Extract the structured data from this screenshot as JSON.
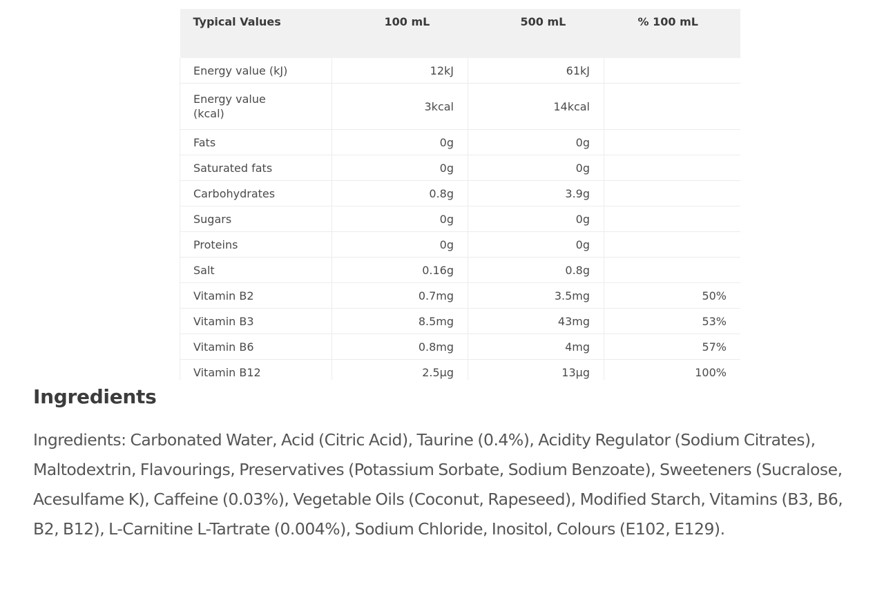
{
  "nutrition_table": {
    "headers": [
      "Typical Values",
      "100 mL",
      "500 mL",
      "% 100 mL"
    ],
    "rows": [
      {
        "name": "Energy value (kJ)",
        "per_100ml": "12kJ",
        "per_500ml": "61kJ",
        "percent": ""
      },
      {
        "name": "Energy value (kcal)",
        "per_100ml": "3kcal",
        "per_500ml": "14kcal",
        "percent": ""
      },
      {
        "name": "Fats",
        "per_100ml": "0g",
        "per_500ml": "0g",
        "percent": ""
      },
      {
        "name": "Saturated fats",
        "per_100ml": "0g",
        "per_500ml": "0g",
        "percent": ""
      },
      {
        "name": "Carbohydrates",
        "per_100ml": "0.8g",
        "per_500ml": "3.9g",
        "percent": ""
      },
      {
        "name": "Sugars",
        "per_100ml": "0g",
        "per_500ml": "0g",
        "percent": ""
      },
      {
        "name": "Proteins",
        "per_100ml": "0g",
        "per_500ml": "0g",
        "percent": ""
      },
      {
        "name": "Salt",
        "per_100ml": "0.16g",
        "per_500ml": "0.8g",
        "percent": ""
      },
      {
        "name": "Vitamin B2",
        "per_100ml": "0.7mg",
        "per_500ml": "3.5mg",
        "percent": "50%"
      },
      {
        "name": "Vitamin B3",
        "per_100ml": "8.5mg",
        "per_500ml": "43mg",
        "percent": "53%"
      },
      {
        "name": "Vitamin B6",
        "per_100ml": "0.8mg",
        "per_500ml": "4mg",
        "percent": "57%"
      },
      {
        "name": "Vitamin B12",
        "per_100ml": "2.5µg",
        "per_500ml": "13µg",
        "percent": "100%"
      }
    ]
  },
  "ingredients": {
    "heading": "Ingredients",
    "text": "Ingredients: Carbonated Water, Acid (Citric Acid), Taurine (0.4%), Acidity Regulator (Sodium Citrates), Maltodextrin, Flavourings, Preservatives (Potassium Sorbate, Sodium Benzoate), Sweeteners (Sucralose, Acesulfame K), Caffeine (0.03%), Vegetable Oils (Coconut, Rapeseed), Modified Starch, Vitamins (B3, B6, B2, B12), L-Carnitine L-Tartrate (0.004%), Sodium Chloride, Inositol, Colours (E102, E129)."
  }
}
